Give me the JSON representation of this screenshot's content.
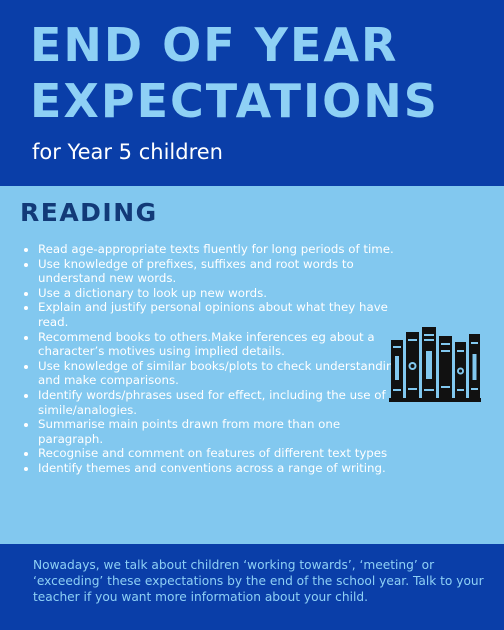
{
  "header": {
    "title_line1": "END OF YEAR",
    "title_line2": "EXPECTATIONS",
    "subtitle": "for Year 5 children"
  },
  "section": {
    "heading": "READING",
    "items": [
      "Read age-appropriate texts fluently for long periods of time.",
      "Use knowledge of prefixes, suffixes and root words to understand new words.",
      "Use a dictionary to look up new words.",
      "Explain and justify personal opinions about what they have read.",
      "Recommend books to others.Make inferences eg about a character’s motives using implied details.",
      "Use knowledge of similar books/plots to check understanding and make comparisons.",
      "Identify words/phrases used for effect, including the use of simile/analogies.",
      "Summarise main points drawn from more than one paragraph.",
      "Recognise and comment on features of different text types",
      "Identify themes and conventions across a range of writing."
    ],
    "icon": "books-on-shelf-icon"
  },
  "footer": {
    "text": "Nowadays, we talk about children ‘working towards’, ‘meeting’ or ‘exceeding’ these expectations by the end of the school year. Talk to your teacher if you want more information about your child."
  },
  "colors": {
    "dark_blue": "#0a3ea8",
    "light_blue": "#82c8ef",
    "title_blue": "#8ed0f5",
    "heading_navy": "#123a78"
  }
}
